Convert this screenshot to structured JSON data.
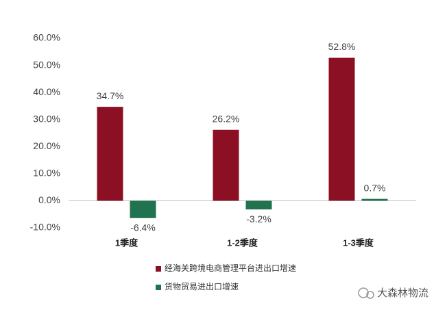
{
  "chart_data": {
    "type": "bar",
    "categories": [
      "1季度",
      "1-2季度",
      "1-3季度"
    ],
    "series": [
      {
        "name": "经海关跨境电商管理平台进出口增速",
        "color": "#8c1023",
        "values": [
          34.7,
          26.2,
          52.8
        ],
        "value_labels": [
          "34.7%",
          "26.2%",
          "52.8%"
        ]
      },
      {
        "name": "货物贸易进出口增速",
        "color": "#21724f",
        "values": [
          -6.4,
          -3.2,
          0.7
        ],
        "value_labels": [
          "-6.4%",
          "-3.2%",
          "0.7%"
        ]
      }
    ],
    "ylim": [
      -10,
      60
    ],
    "yticks": [
      {
        "value": -10,
        "label": "-10.0%"
      },
      {
        "value": 0,
        "label": "0.0%"
      },
      {
        "value": 10,
        "label": "10.0%"
      },
      {
        "value": 20,
        "label": "20.0%"
      },
      {
        "value": 30,
        "label": "30.0%"
      },
      {
        "value": 40,
        "label": "40.0%"
      },
      {
        "value": 50,
        "label": "50.0%"
      },
      {
        "value": 60,
        "label": "60.0%"
      }
    ],
    "grid": false,
    "legend": "bottom",
    "watermark": "大森林物流"
  }
}
